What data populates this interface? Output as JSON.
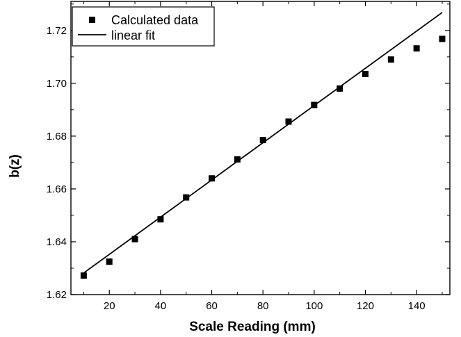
{
  "chart_data": {
    "type": "scatter",
    "xlabel": "Scale Reading (mm)",
    "ylabel": "b(z)",
    "xlim": [
      5,
      153
    ],
    "ylim": [
      1.62,
      1.731
    ],
    "xticks": [
      20,
      40,
      60,
      80,
      100,
      120,
      140
    ],
    "yticks": [
      1.62,
      1.64,
      1.66,
      1.68,
      1.7,
      1.72
    ],
    "ytick_decimals": 2,
    "grid": false,
    "legend_position": "top-left",
    "series": [
      {
        "name": "Calculated data",
        "kind": "points",
        "marker": "square",
        "x": [
          10,
          20,
          30,
          40,
          50,
          60,
          70,
          80,
          90,
          100,
          110,
          120,
          130,
          140,
          150
        ],
        "y": [
          1.6272,
          1.6325,
          1.641,
          1.6485,
          1.6568,
          1.664,
          1.6712,
          1.6785,
          1.6855,
          1.6918,
          1.698,
          1.7035,
          1.709,
          1.7132,
          1.7168
        ]
      },
      {
        "name": "linear fit",
        "kind": "line",
        "x": [
          10,
          150
        ],
        "y": [
          1.6282,
          1.7268
        ]
      }
    ],
    "colors": {
      "marker": "#000000",
      "line": "#000000",
      "axis": "#000000"
    }
  }
}
